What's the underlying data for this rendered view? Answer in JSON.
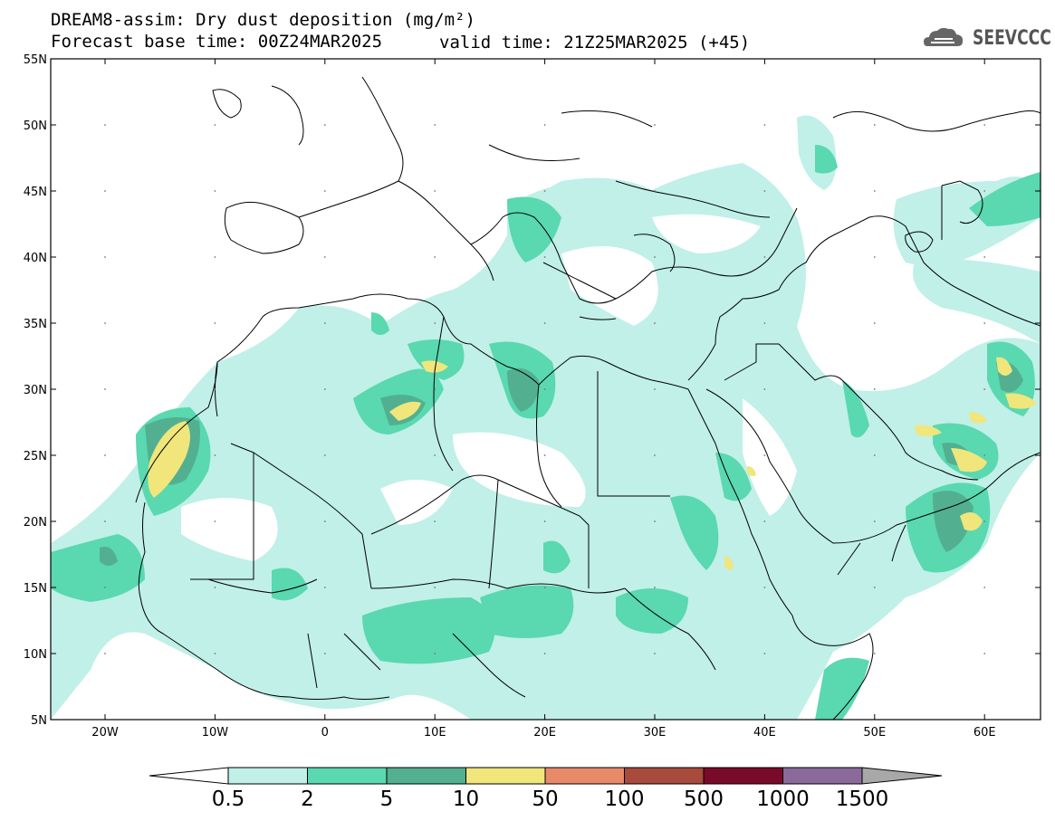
{
  "header": {
    "title_line1": "DREAM8-assim: Dry dust deposition (mg/m²)",
    "title_line2": "Forecast base time: 00Z24MAR2025",
    "valid_time": "valid time: 21Z25MAR2025 (+45)",
    "logo_text": "SEEVCCC"
  },
  "axes": {
    "lat_labels": [
      "55N",
      "50N",
      "45N",
      "40N",
      "35N",
      "30N",
      "25N",
      "20N",
      "15N",
      "10N",
      "5N"
    ],
    "lon_labels": [
      "20W",
      "10W",
      "0",
      "10E",
      "20E",
      "30E",
      "40E",
      "50E",
      "60E"
    ]
  },
  "colorbar": {
    "labels": [
      "0.5",
      "2",
      "5",
      "10",
      "50",
      "100",
      "500",
      "1000",
      "1500"
    ],
    "colors": [
      "#c0f0e8",
      "#5ad8b0",
      "#52b090",
      "#f0e67c",
      "#e88a6a",
      "#a84a3c",
      "#7a0a2a",
      "#8a6a9a",
      "#a8a8a8"
    ]
  },
  "colors": {
    "level1": "#c0f0e8",
    "level2": "#5ad8b0",
    "level3": "#52b090",
    "level4": "#f0e67c"
  }
}
